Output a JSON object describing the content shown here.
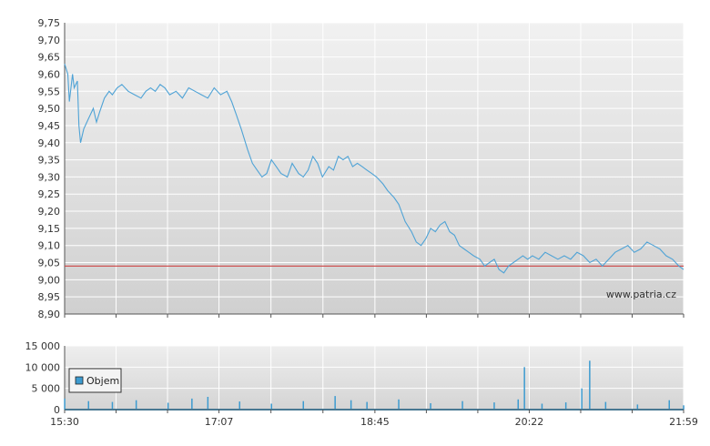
{
  "chart_data": [
    {
      "type": "line",
      "title": "",
      "xlabel": "",
      "ylabel": "",
      "ylim": [
        8.9,
        9.75
      ],
      "y_ticks": [
        "9,75",
        "9,70",
        "9,65",
        "9,60",
        "9,55",
        "9,50",
        "9,45",
        "9,40",
        "9,35",
        "9,30",
        "9,25",
        "9,20",
        "9,15",
        "9,10",
        "9,05",
        "9,00",
        "8,95",
        "8,90"
      ],
      "x_range": [
        "15:30",
        "21:59"
      ],
      "x_tick_labels": [
        "15:30",
        "17:07",
        "18:45",
        "20:22",
        "21:59"
      ],
      "grid": true,
      "reference_line": {
        "value": 9.04,
        "color": "#cc4444"
      },
      "line_color": "#4fa3d6",
      "watermark": "www.patria.cz",
      "series": [
        {
          "x": [
            "15:30",
            "15:32",
            "15:33",
            "15:35",
            "15:36",
            "15:38",
            "15:39",
            "15:40",
            "15:42",
            "15:45",
            "15:48",
            "15:50",
            "15:52",
            "15:55",
            "15:58",
            "16:00",
            "16:03",
            "16:06",
            "16:10",
            "16:14",
            "16:18",
            "16:21",
            "16:24",
            "16:27",
            "16:30",
            "16:33",
            "16:36",
            "16:40",
            "16:44",
            "16:48",
            "16:52",
            "16:56",
            "17:00",
            "17:04",
            "17:08",
            "17:12",
            "17:15",
            "17:18",
            "17:21",
            "17:25",
            "17:28",
            "17:31",
            "17:34",
            "17:37",
            "17:40",
            "17:43",
            "17:46",
            "17:50",
            "17:53",
            "17:57",
            "18:00",
            "18:03",
            "18:06",
            "18:09",
            "18:12",
            "18:16",
            "18:19",
            "18:22",
            "18:25",
            "18:28",
            "18:31",
            "18:34",
            "18:37",
            "18:40",
            "18:43",
            "18:46",
            "18:50",
            "18:53",
            "18:57",
            "19:00",
            "19:04",
            "19:08",
            "19:11",
            "19:14",
            "19:17",
            "19:20",
            "19:23",
            "19:26",
            "19:29",
            "19:32",
            "19:35",
            "19:38",
            "19:41",
            "19:44",
            "19:47",
            "19:51",
            "19:54",
            "19:57",
            "20:00",
            "20:03",
            "20:06",
            "20:09",
            "20:12",
            "20:15",
            "20:18",
            "20:21",
            "20:24",
            "20:28",
            "20:32",
            "20:36",
            "20:40",
            "20:44",
            "20:48",
            "20:52",
            "20:56",
            "21:00",
            "21:04",
            "21:08",
            "21:12",
            "21:16",
            "21:20",
            "21:24",
            "21:28",
            "21:32",
            "21:36",
            "21:40",
            "21:44",
            "21:48",
            "21:52",
            "21:56",
            "21:59"
          ],
          "values": [
            9.63,
            9.6,
            9.52,
            9.6,
            9.56,
            9.58,
            9.45,
            9.4,
            9.44,
            9.47,
            9.5,
            9.46,
            9.49,
            9.53,
            9.55,
            9.54,
            9.56,
            9.57,
            9.55,
            9.54,
            9.53,
            9.55,
            9.56,
            9.55,
            9.57,
            9.56,
            9.54,
            9.55,
            9.53,
            9.56,
            9.55,
            9.54,
            9.53,
            9.56,
            9.54,
            9.55,
            9.52,
            9.48,
            9.44,
            9.38,
            9.34,
            9.32,
            9.3,
            9.31,
            9.35,
            9.33,
            9.31,
            9.3,
            9.34,
            9.31,
            9.3,
            9.32,
            9.36,
            9.34,
            9.3,
            9.33,
            9.32,
            9.36,
            9.35,
            9.36,
            9.33,
            9.34,
            9.33,
            9.32,
            9.31,
            9.3,
            9.28,
            9.26,
            9.24,
            9.22,
            9.17,
            9.14,
            9.11,
            9.1,
            9.12,
            9.15,
            9.14,
            9.16,
            9.17,
            9.14,
            9.13,
            9.1,
            9.09,
            9.08,
            9.07,
            9.06,
            9.04,
            9.05,
            9.06,
            9.03,
            9.02,
            9.04,
            9.05,
            9.06,
            9.07,
            9.06,
            9.07,
            9.06,
            9.08,
            9.07,
            9.06,
            9.07,
            9.06,
            9.08,
            9.07,
            9.05,
            9.06,
            9.04,
            9.06,
            9.08,
            9.09,
            9.1,
            9.08,
            9.09,
            9.11,
            9.1,
            9.09,
            9.07,
            9.06,
            9.04,
            9.03
          ]
        }
      ]
    },
    {
      "type": "bar",
      "title": "",
      "xlabel": "",
      "ylabel": "",
      "ylim": [
        0,
        15000
      ],
      "y_ticks": [
        "15 000",
        "10 000",
        "5 000",
        "0"
      ],
      "x_tick_labels": [
        "15:30",
        "17:07",
        "18:45",
        "20:22",
        "21:59"
      ],
      "grid": true,
      "legend": {
        "label": "Objem",
        "placement": "bottom-left"
      },
      "bar_color": "#3c9bd0",
      "series": [
        {
          "name": "Objem",
          "x": [
            "15:30",
            "15:45",
            "16:00",
            "16:15",
            "16:35",
            "16:50",
            "17:00",
            "17:20",
            "17:40",
            "18:00",
            "18:20",
            "18:30",
            "18:40",
            "19:00",
            "19:20",
            "19:40",
            "20:00",
            "20:15",
            "20:19",
            "20:30",
            "20:45",
            "20:55",
            "21:00",
            "21:10",
            "21:30",
            "21:50",
            "21:59"
          ],
          "values": [
            2600,
            2000,
            1800,
            2200,
            1600,
            2600,
            3000,
            1900,
            1400,
            2000,
            3200,
            2200,
            1800,
            2400,
            1500,
            2000,
            1700,
            2400,
            10000,
            1400,
            1700,
            5000,
            11500,
            1800,
            1200,
            2200,
            1000
          ]
        }
      ]
    }
  ]
}
